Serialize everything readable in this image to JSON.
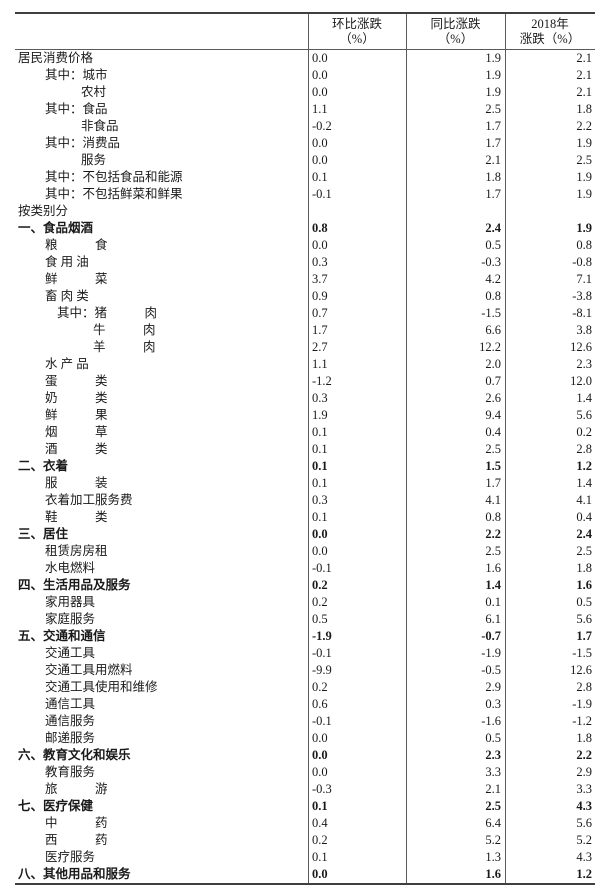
{
  "colors": {
    "background": "#ffffff",
    "text": "#1a1a1a",
    "border": "#3f3f3f"
  },
  "table": {
    "headers": [
      {
        "line1": "环比涨跌",
        "line2": "（%）"
      },
      {
        "line1": "同比涨跌",
        "line2": "（%）"
      },
      {
        "line1": "2018年",
        "line2": "涨跌（%）"
      }
    ],
    "rows": [
      {
        "label": "居民消费价格",
        "level": 0,
        "bold": false,
        "mom": "0.0",
        "yoy": "1.9",
        "y2018": "2.1"
      },
      {
        "label": "其中：城市",
        "level": 1,
        "bold": false,
        "mom": "0.0",
        "yoy": "1.9",
        "y2018": "2.1"
      },
      {
        "label": "农村",
        "level": 2,
        "bold": false,
        "mom": "0.0",
        "yoy": "1.9",
        "y2018": "2.1"
      },
      {
        "label": "其中：食品",
        "level": 1,
        "bold": false,
        "mom": "1.1",
        "yoy": "2.5",
        "y2018": "1.8"
      },
      {
        "label": "非食品",
        "level": 2,
        "bold": false,
        "mom": "-0.2",
        "yoy": "1.7",
        "y2018": "2.2"
      },
      {
        "label": "其中：消费品",
        "level": 1,
        "bold": false,
        "mom": "0.0",
        "yoy": "1.7",
        "y2018": "1.9"
      },
      {
        "label": "服务",
        "level": 2,
        "bold": false,
        "mom": "0.0",
        "yoy": "2.1",
        "y2018": "2.5"
      },
      {
        "label": "其中：不包括食品和能源",
        "level": 1,
        "bold": false,
        "mom": "0.1",
        "yoy": "1.8",
        "y2018": "1.9"
      },
      {
        "label": "其中：不包括鲜菜和鲜果",
        "level": 1,
        "bold": false,
        "mom": "-0.1",
        "yoy": "1.7",
        "y2018": "1.9"
      },
      {
        "label": "按类别分",
        "level": 0,
        "bold": false,
        "mom": "",
        "yoy": "",
        "y2018": ""
      },
      {
        "label": "一、食品烟酒",
        "level": 0,
        "bold": true,
        "mom": "0.8",
        "yoy": "2.4",
        "y2018": "1.9"
      },
      {
        "label": "粮　　　食",
        "level": 1,
        "bold": false,
        "mom": "0.0",
        "yoy": "0.5",
        "y2018": "0.8"
      },
      {
        "label": "食 用 油",
        "level": 1,
        "bold": false,
        "mom": "0.3",
        "yoy": "-0.3",
        "y2018": "-0.8"
      },
      {
        "label": "鲜　　　菜",
        "level": 1,
        "bold": false,
        "mom": "3.7",
        "yoy": "4.2",
        "y2018": "7.1"
      },
      {
        "label": "畜 肉 类",
        "level": 1,
        "bold": false,
        "mom": "0.9",
        "yoy": "0.8",
        "y2018": "-3.8"
      },
      {
        "label": "其中：猪　　　肉",
        "level": 3,
        "bold": false,
        "mom": "0.7",
        "yoy": "-1.5",
        "y2018": "-8.1"
      },
      {
        "label": "牛　　　肉",
        "level": 4,
        "bold": false,
        "mom": "1.7",
        "yoy": "6.6",
        "y2018": "3.8"
      },
      {
        "label": "羊　　　肉",
        "level": 4,
        "bold": false,
        "mom": "2.7",
        "yoy": "12.2",
        "y2018": "12.6"
      },
      {
        "label": "水 产 品",
        "level": 1,
        "bold": false,
        "mom": "1.1",
        "yoy": "2.0",
        "y2018": "2.3"
      },
      {
        "label": "蛋　　　类",
        "level": 1,
        "bold": false,
        "mom": "-1.2",
        "yoy": "0.7",
        "y2018": "12.0"
      },
      {
        "label": "奶　　　类",
        "level": 1,
        "bold": false,
        "mom": "0.3",
        "yoy": "2.6",
        "y2018": "1.4"
      },
      {
        "label": "鲜　　　果",
        "level": 1,
        "bold": false,
        "mom": "1.9",
        "yoy": "9.4",
        "y2018": "5.6"
      },
      {
        "label": "烟　　　草",
        "level": 1,
        "bold": false,
        "mom": "0.1",
        "yoy": "0.4",
        "y2018": "0.2"
      },
      {
        "label": "酒　　　类",
        "level": 1,
        "bold": false,
        "mom": "0.1",
        "yoy": "2.5",
        "y2018": "2.8"
      },
      {
        "label": "二、衣着",
        "level": 0,
        "bold": true,
        "mom": "0.1",
        "yoy": "1.5",
        "y2018": "1.2"
      },
      {
        "label": "服　　　装",
        "level": 1,
        "bold": false,
        "mom": "0.1",
        "yoy": "1.7",
        "y2018": "1.4"
      },
      {
        "label": "衣着加工服务费",
        "level": 1,
        "bold": false,
        "mom": "0.3",
        "yoy": "4.1",
        "y2018": "4.1"
      },
      {
        "label": "鞋　　　类",
        "level": 1,
        "bold": false,
        "mom": "0.1",
        "yoy": "0.8",
        "y2018": "0.4"
      },
      {
        "label": "三、居住",
        "level": 0,
        "bold": true,
        "mom": "0.0",
        "yoy": "2.2",
        "y2018": "2.4"
      },
      {
        "label": "租赁房房租",
        "level": 1,
        "bold": false,
        "mom": "0.0",
        "yoy": "2.5",
        "y2018": "2.5"
      },
      {
        "label": "水电燃料",
        "level": 1,
        "bold": false,
        "mom": "-0.1",
        "yoy": "1.6",
        "y2018": "1.8"
      },
      {
        "label": "四、生活用品及服务",
        "level": 0,
        "bold": true,
        "mom": "0.2",
        "yoy": "1.4",
        "y2018": "1.6"
      },
      {
        "label": "家用器具",
        "level": 1,
        "bold": false,
        "mom": "0.2",
        "yoy": "0.1",
        "y2018": "0.5"
      },
      {
        "label": "家庭服务",
        "level": 1,
        "bold": false,
        "mom": "0.5",
        "yoy": "6.1",
        "y2018": "5.6"
      },
      {
        "label": "五、交通和通信",
        "level": 0,
        "bold": true,
        "mom": "-1.9",
        "yoy": "-0.7",
        "y2018": "1.7"
      },
      {
        "label": "交通工具",
        "level": 1,
        "bold": false,
        "mom": "-0.1",
        "yoy": "-1.9",
        "y2018": "-1.5"
      },
      {
        "label": "交通工具用燃料",
        "level": 1,
        "bold": false,
        "mom": "-9.9",
        "yoy": "-0.5",
        "y2018": "12.6"
      },
      {
        "label": "交通工具使用和维修",
        "level": 1,
        "bold": false,
        "mom": "0.2",
        "yoy": "2.9",
        "y2018": "2.8"
      },
      {
        "label": "通信工具",
        "level": 1,
        "bold": false,
        "mom": "0.6",
        "yoy": "0.3",
        "y2018": "-1.9"
      },
      {
        "label": "通信服务",
        "level": 1,
        "bold": false,
        "mom": "-0.1",
        "yoy": "-1.6",
        "y2018": "-1.2"
      },
      {
        "label": "邮递服务",
        "level": 1,
        "bold": false,
        "mom": "0.0",
        "yoy": "0.5",
        "y2018": "1.8"
      },
      {
        "label": "六、教育文化和娱乐",
        "level": 0,
        "bold": true,
        "mom": "0.0",
        "yoy": "2.3",
        "y2018": "2.2"
      },
      {
        "label": "教育服务",
        "level": 1,
        "bold": false,
        "mom": "0.0",
        "yoy": "3.3",
        "y2018": "2.9"
      },
      {
        "label": "旅　　　游",
        "level": 1,
        "bold": false,
        "mom": "-0.3",
        "yoy": "2.1",
        "y2018": "3.3"
      },
      {
        "label": "七、医疗保健",
        "level": 0,
        "bold": true,
        "mom": "0.1",
        "yoy": "2.5",
        "y2018": "4.3"
      },
      {
        "label": "中　　　药",
        "level": 1,
        "bold": false,
        "mom": "0.4",
        "yoy": "6.4",
        "y2018": "5.6"
      },
      {
        "label": "西　　　药",
        "level": 1,
        "bold": false,
        "mom": "0.2",
        "yoy": "5.2",
        "y2018": "5.2"
      },
      {
        "label": "医疗服务",
        "level": 1,
        "bold": false,
        "mom": "0.1",
        "yoy": "1.3",
        "y2018": "4.3"
      },
      {
        "label": "八、其他用品和服务",
        "level": 0,
        "bold": true,
        "mom": "0.0",
        "yoy": "1.6",
        "y2018": "1.2"
      }
    ]
  }
}
